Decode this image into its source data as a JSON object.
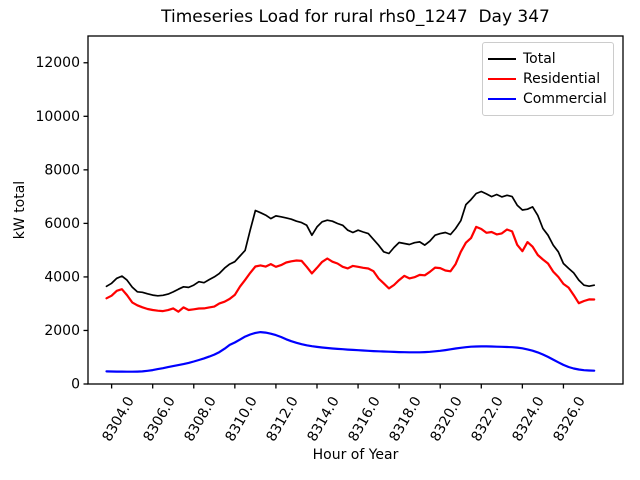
{
  "chart_data": {
    "type": "line",
    "title": "Timeseries Load for rural rhs0_1247  Day 347",
    "xlabel": "Hour of Year",
    "ylabel": "kW total",
    "xlim": [
      8302.85,
      8328.9
    ],
    "ylim": [
      0,
      13000
    ],
    "grid": false,
    "legend_position": "upper right",
    "xticks": {
      "values": [
        8304,
        8306,
        8308,
        8310,
        8312,
        8314,
        8316,
        8318,
        8320,
        8322,
        8324,
        8326
      ],
      "labels": [
        "8304.0",
        "8306.0",
        "8308.0",
        "8310.0",
        "8312.0",
        "8314.0",
        "8316.0",
        "8318.0",
        "8320.0",
        "8322.0",
        "8324.0",
        "8326.0"
      ]
    },
    "yticks": {
      "values": [
        0,
        2000,
        4000,
        6000,
        8000,
        10000,
        12000
      ],
      "labels": [
        "0",
        "2000",
        "4000",
        "6000",
        "8000",
        "10000",
        "12000"
      ]
    },
    "x_start": 8303.75,
    "x_step": 0.25,
    "series": [
      {
        "name": "Total",
        "color": "#000000",
        "values": [
          3650,
          3760,
          3950,
          4030,
          3880,
          3620,
          3445,
          3425,
          3370,
          3320,
          3295,
          3315,
          3360,
          3440,
          3540,
          3630,
          3610,
          3695,
          3820,
          3785,
          3900,
          4000,
          4130,
          4330,
          4480,
          4570,
          4780,
          4990,
          5750,
          6480,
          6400,
          6310,
          6180,
          6280,
          6245,
          6205,
          6155,
          6080,
          6030,
          5930,
          5560,
          5870,
          6060,
          6120,
          6080,
          5995,
          5930,
          5745,
          5660,
          5745,
          5680,
          5620,
          5400,
          5185,
          4940,
          4875,
          5100,
          5285,
          5250,
          5210,
          5280,
          5310,
          5190,
          5340,
          5560,
          5620,
          5660,
          5585,
          5810,
          6100,
          6700,
          6890,
          7115,
          7190,
          7100,
          7000,
          7080,
          6990,
          7050,
          7000,
          6680,
          6500,
          6530,
          6615,
          6300,
          5810,
          5560,
          5190,
          4940,
          4500,
          4320,
          4150,
          3880,
          3690,
          3655,
          3690
        ]
      },
      {
        "name": "Residential",
        "color": "#ff0000",
        "values": [
          3200,
          3300,
          3480,
          3540,
          3320,
          3050,
          2940,
          2865,
          2800,
          2765,
          2740,
          2725,
          2760,
          2825,
          2700,
          2860,
          2765,
          2790,
          2820,
          2825,
          2860,
          2890,
          3010,
          3075,
          3180,
          3330,
          3640,
          3890,
          4150,
          4390,
          4430,
          4385,
          4480,
          4380,
          4440,
          4540,
          4585,
          4615,
          4600,
          4380,
          4130,
          4340,
          4560,
          4690,
          4570,
          4500,
          4380,
          4320,
          4410,
          4380,
          4340,
          4315,
          4215,
          3940,
          3760,
          3570,
          3700,
          3880,
          4040,
          3945,
          3990,
          4075,
          4060,
          4190,
          4350,
          4330,
          4240,
          4210,
          4480,
          4940,
          5280,
          5450,
          5870,
          5790,
          5650,
          5680,
          5590,
          5625,
          5770,
          5700,
          5200,
          4960,
          5300,
          5130,
          4820,
          4650,
          4500,
          4200,
          4000,
          3740,
          3600,
          3320,
          3020,
          3100,
          3160,
          3155
        ]
      },
      {
        "name": "Commercial",
        "color": "#0000ff",
        "values": [
          470,
          467,
          464,
          462,
          461,
          461,
          463,
          472,
          492,
          520,
          555,
          592,
          630,
          668,
          705,
          745,
          790,
          840,
          895,
          955,
          1025,
          1100,
          1190,
          1320,
          1460,
          1550,
          1660,
          1770,
          1850,
          1910,
          1938,
          1920,
          1880,
          1825,
          1755,
          1670,
          1600,
          1540,
          1488,
          1445,
          1412,
          1385,
          1362,
          1344,
          1328,
          1313,
          1299,
          1286,
          1274,
          1262,
          1251,
          1240,
          1230,
          1221,
          1213,
          1206,
          1199,
          1193,
          1188,
          1185,
          1184,
          1186,
          1192,
          1203,
          1220,
          1242,
          1268,
          1296,
          1325,
          1352,
          1375,
          1392,
          1402,
          1405,
          1403,
          1399,
          1394,
          1389,
          1383,
          1374,
          1358,
          1332,
          1294,
          1244,
          1180,
          1103,
          1012,
          912,
          810,
          715,
          636,
          578,
          540,
          517,
          503,
          497
        ]
      }
    ]
  }
}
